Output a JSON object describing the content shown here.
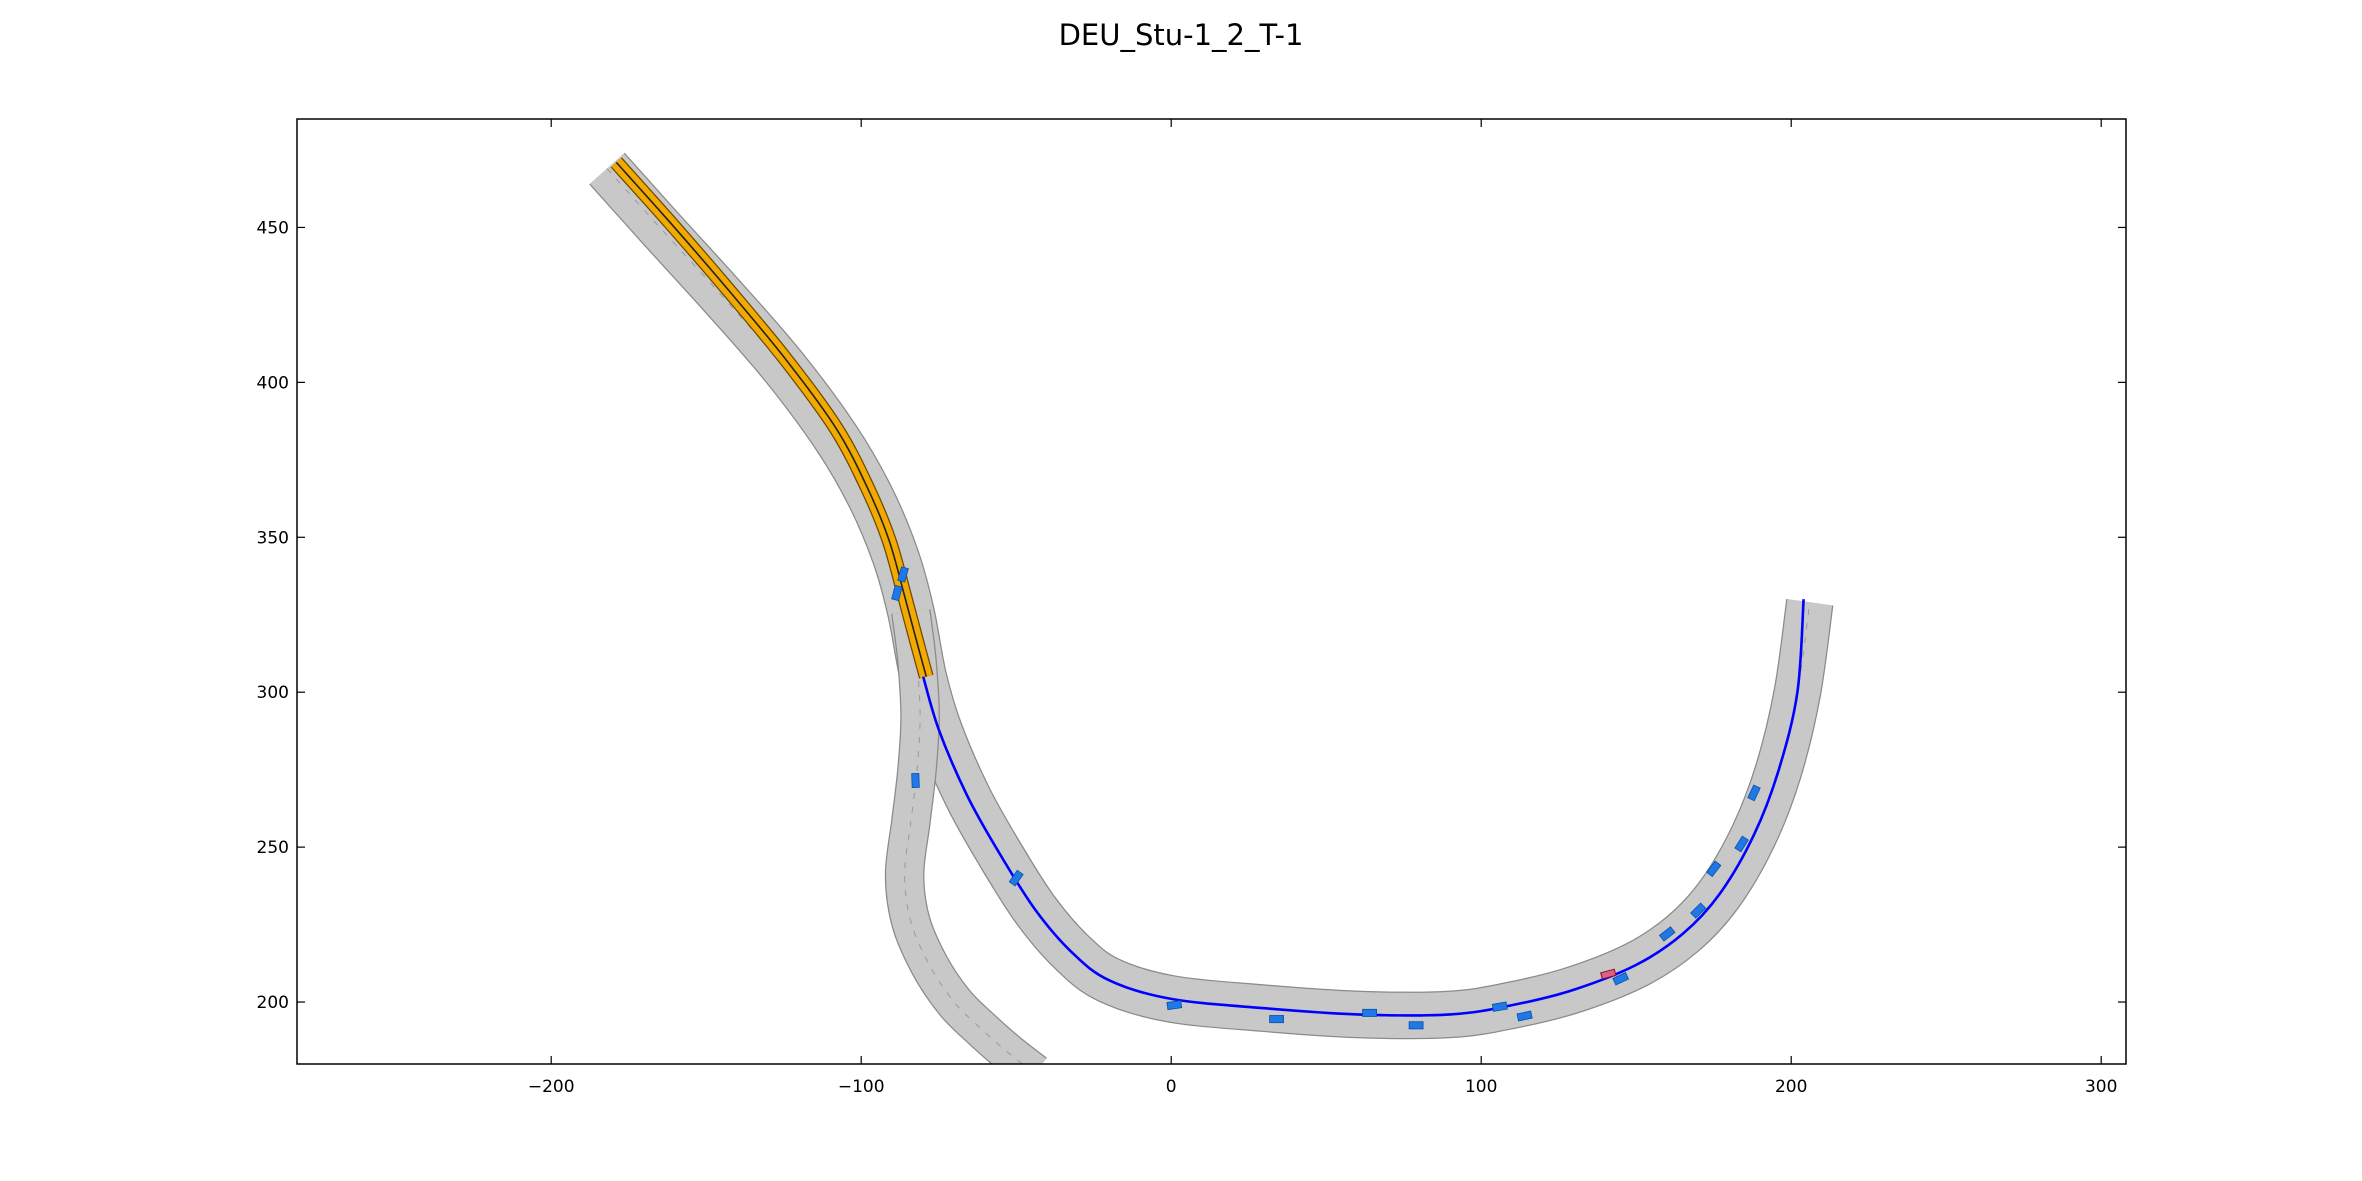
{
  "chart_data": {
    "type": "scenario-plot",
    "title": "DEU_Stu-1_2_T-1",
    "xlabel": "",
    "ylabel": "",
    "xlim": [
      -282,
      308
    ],
    "ylim": [
      180,
      485
    ],
    "xticks": [
      -200,
      -100,
      0,
      100,
      200,
      300
    ],
    "yticks": [
      200,
      250,
      300,
      350,
      400,
      450
    ],
    "xtick_labels": [
      "−200",
      "−100",
      "0",
      "100",
      "200",
      "300"
    ],
    "ytick_labels": [
      "200",
      "250",
      "300",
      "350",
      "400",
      "450"
    ],
    "grid": false,
    "colors": {
      "road_fill": "#c8c8c8",
      "road_edge": "#8a8a8a",
      "road_centerline": "#9a9a9a",
      "route": "#0000ff",
      "goal_region": "#f2a900",
      "obstacle": "#1e78e6",
      "ego_vehicle": "#e06080"
    },
    "roads": [
      {
        "name": "main_road",
        "points": [
          [
            -182,
            469
          ],
          [
            -165,
            450
          ],
          [
            -145,
            428
          ],
          [
            -125,
            405
          ],
          [
            -108,
            382
          ],
          [
            -97,
            363
          ],
          [
            -89,
            344
          ],
          [
            -84,
            326
          ],
          [
            -80,
            305
          ],
          [
            -75,
            288
          ],
          [
            -66,
            267
          ],
          [
            -56,
            249
          ],
          [
            -44,
            230
          ],
          [
            -32,
            216
          ],
          [
            -20,
            207
          ],
          [
            0,
            201
          ],
          [
            30,
            198
          ],
          [
            60,
            196
          ],
          [
            90,
            196
          ],
          [
            110,
            199
          ],
          [
            130,
            204
          ],
          [
            150,
            212
          ],
          [
            165,
            222
          ],
          [
            177,
            235
          ],
          [
            188,
            254
          ],
          [
            196,
            275
          ],
          [
            202,
            300
          ],
          [
            206,
            329
          ]
        ],
        "width": 5.6
      },
      {
        "name": "branch_road",
        "points": [
          [
            -84,
            326
          ],
          [
            -82,
            310
          ],
          [
            -81,
            292
          ],
          [
            -82,
            275
          ],
          [
            -84,
            258
          ],
          [
            -86,
            241
          ],
          [
            -84,
            226
          ],
          [
            -78,
            212
          ],
          [
            -70,
            200
          ],
          [
            -62,
            192
          ],
          [
            -53,
            184
          ],
          [
            -44,
            177
          ]
        ],
        "width": 4.6
      }
    ],
    "route": [
      [
        -80,
        305
      ],
      [
        -75,
        288
      ],
      [
        -66,
        267
      ],
      [
        -56,
        249
      ],
      [
        -44,
        230
      ],
      [
        -32,
        216
      ],
      [
        -20,
        207
      ],
      [
        0,
        201
      ],
      [
        30,
        198
      ],
      [
        60,
        196
      ],
      [
        90,
        196
      ],
      [
        110,
        199
      ],
      [
        130,
        204
      ],
      [
        150,
        212
      ],
      [
        165,
        222
      ],
      [
        177,
        235
      ],
      [
        188,
        254
      ],
      [
        196,
        275
      ],
      [
        202,
        300
      ],
      [
        204,
        330
      ]
    ],
    "goal_region": [
      [
        -179,
        471
      ],
      [
        -162,
        452
      ],
      [
        -143,
        430
      ],
      [
        -124,
        407
      ],
      [
        -108,
        385
      ],
      [
        -98,
        366
      ],
      [
        -91,
        349
      ],
      [
        -86,
        331
      ],
      [
        -82,
        316
      ],
      [
        -79,
        305
      ]
    ],
    "obstacles": [
      {
        "x": -86.5,
        "y": 338,
        "angle": 75
      },
      {
        "x": -88.5,
        "y": 332,
        "angle": 75
      },
      {
        "x": -82.5,
        "y": 271.5,
        "angle": 92
      },
      {
        "x": -50,
        "y": 240,
        "angle": 55
      },
      {
        "x": 1,
        "y": 199,
        "angle": 8
      },
      {
        "x": 34,
        "y": 194.5,
        "angle": 0
      },
      {
        "x": 64,
        "y": 196.5,
        "angle": 0
      },
      {
        "x": 79,
        "y": 192.5,
        "angle": 0
      },
      {
        "x": 106,
        "y": 198.5,
        "angle": 10
      },
      {
        "x": 114,
        "y": 195.5,
        "angle": 12
      },
      {
        "x": 145,
        "y": 207.5,
        "angle": 25
      },
      {
        "x": 160,
        "y": 222,
        "angle": 38
      },
      {
        "x": 170,
        "y": 229.5,
        "angle": 45
      },
      {
        "x": 175,
        "y": 243,
        "angle": 52
      },
      {
        "x": 184,
        "y": 251,
        "angle": 58
      },
      {
        "x": 188,
        "y": 267.5,
        "angle": 65
      }
    ],
    "ego_vehicle": {
      "x": 141,
      "y": 209,
      "angle": 15
    }
  }
}
